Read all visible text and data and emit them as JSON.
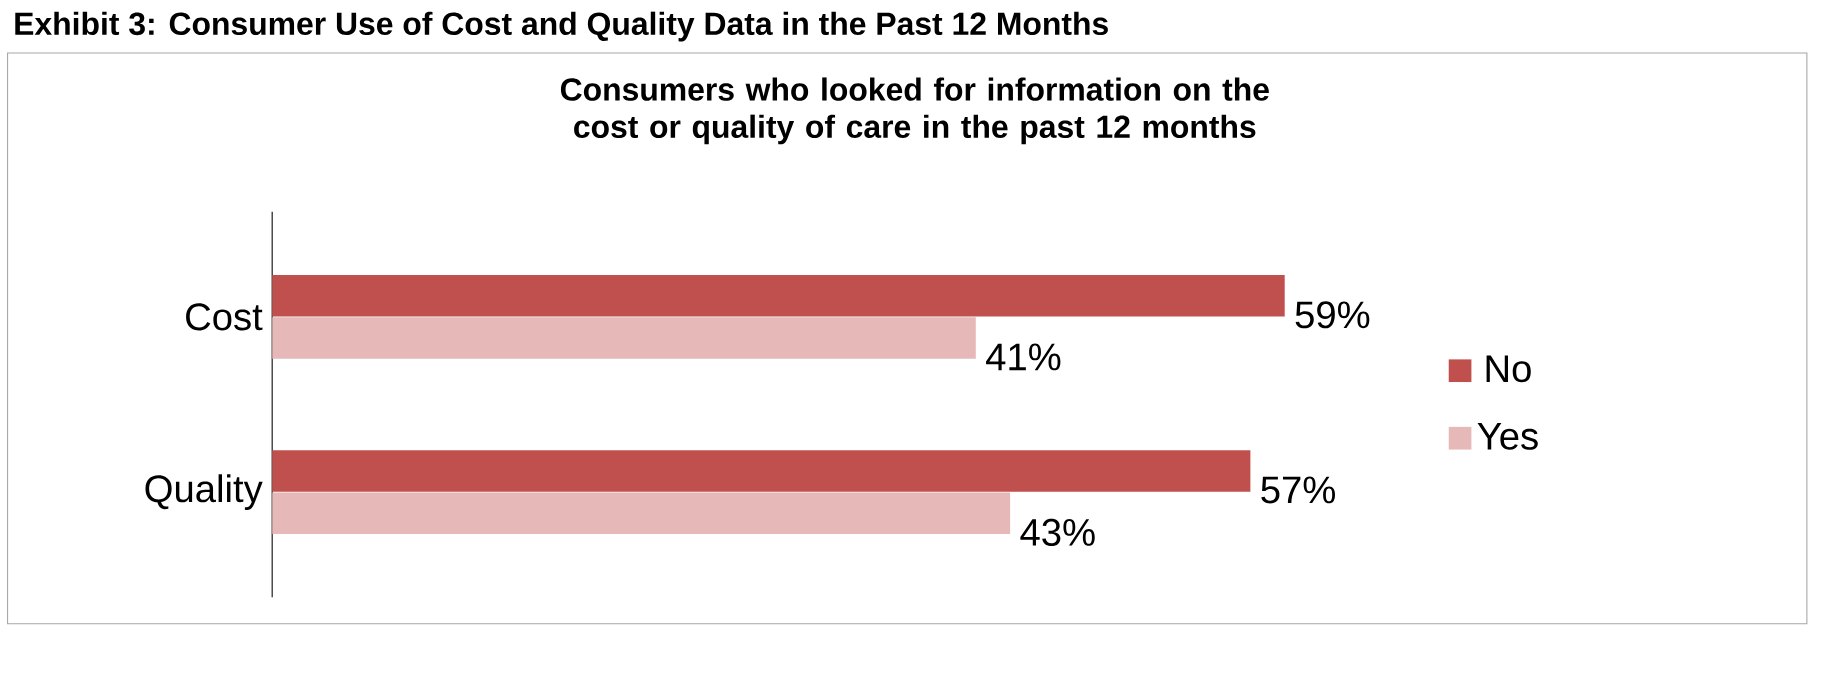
{
  "chart_data": {
    "type": "bar",
    "orientation": "horizontal",
    "title": "Exhibit 3: Consumer Use of Cost and Quality Data in the Past 12 Months",
    "subtitle": "Consumers who looked for information on the cost or quality of care in the past 12 months",
    "categories": [
      "Cost",
      "Quality"
    ],
    "legend": "right",
    "series": [
      {
        "name": "No",
        "color": "#c0504d",
        "values": [
          59,
          57
        ],
        "value_labels": [
          "59%",
          "57%"
        ]
      },
      {
        "name": "Yes",
        "color": "#e6b9b8",
        "values": [
          41,
          43
        ],
        "value_labels": [
          "41%",
          "43%"
        ]
      }
    ]
  }
}
